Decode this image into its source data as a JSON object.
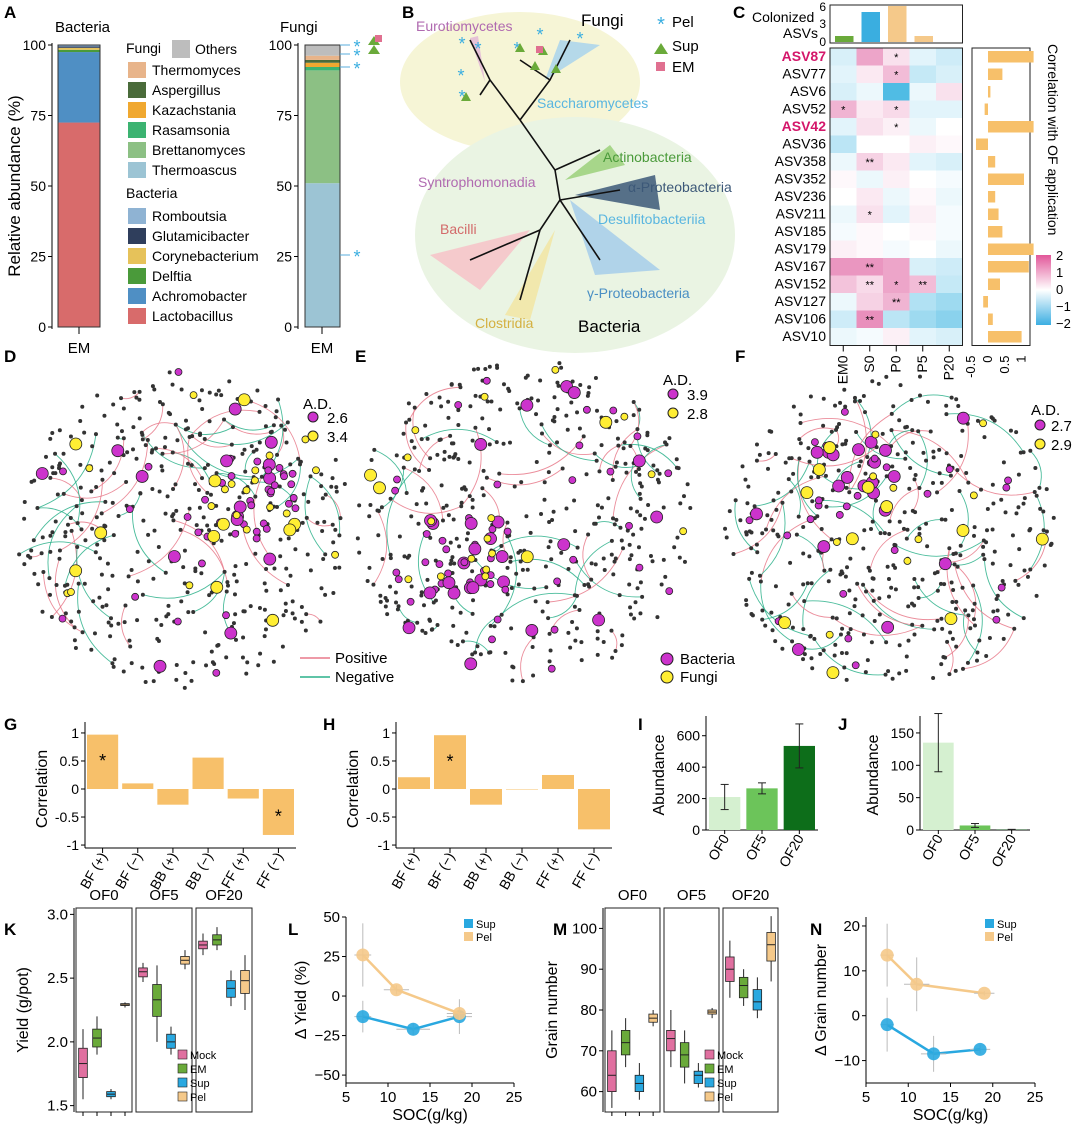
{
  "colors": {
    "Others": "#bdbdbd",
    "Thermomyces": "#e8b48a",
    "Aspergillus": "#4a6b3a",
    "Kazachstania": "#f0a830",
    "Rasamsonia": "#3cb371",
    "Brettanomyces": "#8cc084",
    "Thermoascus": "#9cc4d4",
    "Romboutsia": "#8fb3d3",
    "Glutamicibacter": "#2f3e5c",
    "Corynebacterium": "#e6c25a",
    "Delftia": "#4a9a3a",
    "Achromobacter": "#4f8fc4",
    "Lactobacillus": "#d86b6b",
    "pel": "#3aaee0",
    "sup": "#6aaa3a",
    "em": "#e07090",
    "orange": "#f7c06a",
    "mock": "#e070a0",
    "em_box": "#6aaa3a",
    "sup_box": "#29a8e0",
    "pel_box": "#f5c98a",
    "bacteria_node": "#cc33cc",
    "fungi_node": "#ffee33",
    "positive": "#e8798a",
    "negative": "#2ab08a"
  },
  "panels": {
    "A": {
      "label": "A",
      "bacteria_title": "Bacteria",
      "fungi_title": "Fungi",
      "ylabel": "Relative abundance (%)",
      "yticks": [
        "0",
        "25",
        "50",
        "75",
        "100"
      ],
      "xlabel": "EM",
      "legend": {
        "fungi_heading": "Fungi",
        "others": "Others",
        "fungi": [
          "Thermomyces",
          "Aspergillus",
          "Kazachstania",
          "Rasamsonia",
          "Brettanomyces",
          "Thermoascus"
        ],
        "bacteria_heading": "Bacteria",
        "bacteria": [
          "Romboutsia",
          "Glutamicibacter",
          "Corynebacterium",
          "Delftia",
          "Achromobacter",
          "Lactobacillus"
        ]
      },
      "star": "*"
    },
    "B": {
      "label": "B",
      "fungi": "Fungi",
      "bacteria": "Bacteria",
      "clades": [
        "Eurotiomycetes",
        "Saccharomycetes",
        "Syntrophomonadia",
        "Actinobacteria",
        "α-Proteobacteria",
        "Desulfitobacteriia",
        "Bacilli",
        "γ-Proteobacteria",
        "Clostridia"
      ],
      "legend": [
        "Pel",
        "Sup",
        "EM"
      ]
    },
    "C": {
      "label": "C",
      "top_label1": "Colonized",
      "top_label2": "ASVs",
      "top_ticks": [
        "0",
        "3",
        "6"
      ],
      "right_axis": "Correlation with OF application",
      "right_ticks": [
        "-0.5",
        "0",
        "0.5",
        "1"
      ],
      "scale_ticks": [
        "2",
        "1",
        "0",
        "−1",
        "−2"
      ]
    },
    "D": {
      "label": "D",
      "ad": "A.D.",
      "v1": "2.6",
      "v2": "3.4",
      "pos": "Positive",
      "neg": "Negative"
    },
    "E": {
      "label": "E",
      "ad": "A.D.",
      "v1": "3.9",
      "v2": "2.8",
      "bac": "Bacteria",
      "fun": "Fungi"
    },
    "F": {
      "label": "F",
      "ad": "A.D.",
      "v1": "2.7",
      "v2": "2.9"
    },
    "G": {
      "label": "G",
      "ylabel": "Correlation",
      "yticks": [
        "1",
        "0.5",
        "0",
        "-0.5",
        "-1"
      ]
    },
    "H": {
      "label": "H",
      "ylabel": "Correlation",
      "yticks": [
        "1",
        "0.5",
        "0",
        "-0.5",
        "-1"
      ]
    },
    "I": {
      "label": "I",
      "ylabel": "Abundance",
      "yticks": [
        "0",
        "200",
        "400",
        "600"
      ]
    },
    "J": {
      "label": "J",
      "ylabel": "Abundance",
      "yticks": [
        "0",
        "50",
        "100",
        "150"
      ]
    },
    "K": {
      "label": "K",
      "ylabel": "Yield (g/pot)",
      "yticks": [
        "1.5",
        "2.0",
        "2.5",
        "3.0"
      ],
      "groups": [
        "OF0",
        "OF5",
        "OF20"
      ],
      "legend": [
        "Mock",
        "EM",
        "Sup",
        "Pel"
      ]
    },
    "L": {
      "label": "L",
      "ylabel": "Δ Yield (%)",
      "xlabel": "SOC(g/kg)",
      "yticks": [
        "50",
        "25",
        "0",
        "−25",
        "−50"
      ],
      "xticks": [
        "5",
        "10",
        "15",
        "20",
        "25"
      ],
      "legend": [
        "Sup",
        "Pel"
      ]
    },
    "M": {
      "label": "M",
      "ylabel": "Grain number",
      "yticks": [
        "60",
        "70",
        "80",
        "90",
        "100"
      ],
      "groups": [
        "OF0",
        "OF5",
        "OF20"
      ],
      "legend": [
        "Mock",
        "EM",
        "Sup",
        "Pel"
      ]
    },
    "N": {
      "label": "N",
      "ylabel": "Δ Grain number",
      "xlabel": "SOC(g/kg)",
      "yticks": [
        "20",
        "10",
        "0",
        "−10"
      ],
      "xticks": [
        "5",
        "10",
        "15",
        "20",
        "25"
      ],
      "legend": [
        "Sup",
        "Pel"
      ]
    }
  },
  "chart_data": [
    {
      "id": "A-bacteria",
      "type": "bar",
      "title": "Bacteria",
      "categories": [
        "EM"
      ],
      "ylabel": "Relative abundance (%)",
      "ylim": [
        0,
        100
      ],
      "series": [
        {
          "name": "Lactobacillus",
          "values": [
            72.5
          ]
        },
        {
          "name": "Achromobacter",
          "values": [
            25
          ]
        },
        {
          "name": "Delftia",
          "values": [
            0.8
          ]
        },
        {
          "name": "Corynebacterium",
          "values": [
            0.7
          ]
        },
        {
          "name": "Glutamicibacter",
          "values": [
            0.5
          ]
        },
        {
          "name": "Romboutsia",
          "values": [
            0.5
          ]
        }
      ]
    },
    {
      "id": "A-fungi",
      "type": "bar",
      "title": "Fungi",
      "categories": [
        "EM"
      ],
      "ylim": [
        0,
        100
      ],
      "series": [
        {
          "name": "Thermoascus",
          "values": [
            51
          ]
        },
        {
          "name": "Brettanomyces",
          "values": [
            40
          ]
        },
        {
          "name": "Rasamsonia",
          "values": [
            1.2
          ]
        },
        {
          "name": "Kazachstania",
          "values": [
            1.5
          ]
        },
        {
          "name": "Aspergillus",
          "values": [
            1
          ]
        },
        {
          "name": "Thermomyces",
          "values": [
            1.5
          ]
        },
        {
          "name": "Others",
          "values": [
            3.8
          ]
        }
      ]
    },
    {
      "id": "C-top",
      "type": "bar",
      "title": "Colonized ASVs",
      "categories": [
        "EM0",
        "S0",
        "P0",
        "P5",
        "P20"
      ],
      "values": [
        1,
        5,
        6,
        1,
        0
      ],
      "ylim": [
        0,
        6
      ]
    },
    {
      "id": "C-heatmap",
      "type": "heatmap",
      "columns": [
        "EM0",
        "S0",
        "P0",
        "P5",
        "P20"
      ],
      "rows": [
        "ASV87",
        "ASV77",
        "ASV6",
        "ASV52",
        "ASV42",
        "ASV36",
        "ASV358",
        "ASV352",
        "ASV236",
        "ASV211",
        "ASV185",
        "ASV179",
        "ASV167",
        "ASV152",
        "ASV127",
        "ASV106",
        "ASV10"
      ],
      "highlight_rows": [
        "ASV87",
        "ASV42"
      ],
      "values": [
        [
          -0.4,
          1.2,
          0.4,
          -0.3,
          -0.5
        ],
        [
          -0.3,
          0.3,
          0.9,
          -0.6,
          -0.4
        ],
        [
          -0.4,
          -0.2,
          -1.8,
          -0.2,
          0.4
        ],
        [
          1.0,
          0.3,
          0.5,
          -0.3,
          -0.3
        ],
        [
          -0.3,
          0.4,
          0.2,
          -0.2,
          0.0
        ],
        [
          -0.7,
          0.0,
          0.0,
          0.2,
          0.1
        ],
        [
          -0.2,
          0.6,
          0.3,
          -0.3,
          -0.4
        ],
        [
          0.1,
          -0.2,
          0.2,
          0.0,
          -0.1
        ],
        [
          0.0,
          0.3,
          -0.2,
          0.1,
          -0.2
        ],
        [
          -0.2,
          0.4,
          -0.3,
          0.2,
          -0.1
        ],
        [
          -0.1,
          0.1,
          0.0,
          0.1,
          -0.1
        ],
        [
          0.2,
          0.1,
          -0.1,
          0.0,
          -0.2
        ],
        [
          1.4,
          1.4,
          1.2,
          -0.4,
          -0.5
        ],
        [
          0.8,
          0.5,
          1.2,
          0.9,
          -0.6
        ],
        [
          -0.2,
          0.6,
          1.0,
          -0.8,
          -1.0
        ],
        [
          -0.5,
          1.5,
          -0.7,
          -1.0,
          -1.2
        ],
        [
          -0.2,
          -0.1,
          0.2,
          -0.3,
          -0.4
        ]
      ],
      "significance": [
        [
          "",
          "",
          "*",
          "",
          ""
        ],
        [
          "",
          "",
          "*",
          "",
          ""
        ],
        [
          "",
          "",
          "",
          "",
          ""
        ],
        [
          "*",
          "",
          "*",
          "",
          ""
        ],
        [
          "",
          "",
          "*",
          "",
          ""
        ],
        [
          "",
          "",
          "",
          "",
          ""
        ],
        [
          "",
          "**",
          "",
          "",
          ""
        ],
        [
          "",
          "",
          "",
          "",
          ""
        ],
        [
          "",
          "",
          "",
          "",
          ""
        ],
        [
          "",
          "*",
          "",
          "",
          ""
        ],
        [
          "",
          "",
          "",
          "",
          ""
        ],
        [
          "",
          "",
          "",
          "",
          ""
        ],
        [
          "",
          "**",
          "",
          "",
          ""
        ],
        [
          "",
          "**",
          "*",
          "**",
          ""
        ],
        [
          "",
          "",
          "**",
          "",
          ""
        ],
        [
          "",
          "**",
          "",
          "",
          ""
        ],
        [
          "",
          "",
          "",
          "",
          ""
        ]
      ],
      "scale": [
        -2,
        2
      ]
    },
    {
      "id": "C-right",
      "type": "bar",
      "title": "Correlation with OF application",
      "categories": [
        "ASV87",
        "ASV77",
        "ASV6",
        "ASV52",
        "ASV42",
        "ASV36",
        "ASV358",
        "ASV352",
        "ASV236",
        "ASV211",
        "ASV185",
        "ASV179",
        "ASV167",
        "ASV152",
        "ASV127",
        "ASV106",
        "ASV10"
      ],
      "values": [
        0.95,
        0.3,
        0.05,
        -0.07,
        0.95,
        -0.25,
        0.15,
        0.75,
        0.15,
        0.22,
        0.3,
        0.95,
        0.85,
        0.25,
        -0.1,
        0.1,
        0.7
      ],
      "xlim": [
        -0.5,
        1
      ]
    },
    {
      "id": "G",
      "type": "bar",
      "ylabel": "Correlation",
      "categories": [
        "BF (+)",
        "BF (−)",
        "BB (+)",
        "BB (−)",
        "FF (+)",
        "FF (−)"
      ],
      "values": [
        0.97,
        0.1,
        -0.28,
        0.56,
        -0.17,
        -0.82
      ],
      "labels": [
        "*",
        "",
        "",
        "",
        "",
        "*"
      ],
      "ylim": [
        -1,
        1
      ]
    },
    {
      "id": "H",
      "type": "bar",
      "ylabel": "Correlation",
      "categories": [
        "BF (+)",
        "BF (−)",
        "BB (+)",
        "BB (−)",
        "FF (+)",
        "FF (−)"
      ],
      "values": [
        0.21,
        0.96,
        -0.28,
        0.0,
        0.25,
        -0.72
      ],
      "labels": [
        "",
        "*",
        "",
        "",
        "",
        ""
      ],
      "ylim": [
        -1,
        1
      ]
    },
    {
      "id": "I",
      "type": "bar",
      "ylabel": "Abundance",
      "categories": [
        "OF0",
        "OF5",
        "OF20"
      ],
      "values": [
        210,
        265,
        535
      ],
      "errors": [
        80,
        35,
        140
      ],
      "ylim": [
        0,
        700
      ]
    },
    {
      "id": "J",
      "type": "bar",
      "ylabel": "Abundance",
      "categories": [
        "OF0",
        "OF5",
        "OF20"
      ],
      "values": [
        135,
        7,
        0.5
      ],
      "errors": [
        45,
        3,
        0.5
      ],
      "ylim": [
        0,
        170
      ]
    },
    {
      "id": "K",
      "type": "box",
      "ylabel": "Yield (g/pot)",
      "groups": [
        "OF0",
        "OF5",
        "OF20"
      ],
      "series": [
        "Mock",
        "EM",
        "Sup",
        "Pel"
      ],
      "ylim": [
        1.45,
        3.05
      ],
      "boxes": [
        [
          [
            1.55,
            1.72,
            1.83,
            1.95,
            2.1
          ],
          [
            1.9,
            1.96,
            2.03,
            2.1,
            2.2
          ],
          [
            1.55,
            1.57,
            1.59,
            1.61,
            1.63
          ],
          [
            2.27,
            2.285,
            2.29,
            2.3,
            2.31
          ]
        ],
        [
          [
            2.47,
            2.51,
            2.55,
            2.58,
            2.62
          ],
          [
            2.0,
            2.2,
            2.33,
            2.45,
            2.6
          ],
          [
            1.9,
            1.95,
            2.0,
            2.06,
            2.12
          ],
          [
            2.57,
            2.61,
            2.64,
            2.67,
            2.72
          ]
        ],
        [
          [
            2.68,
            2.73,
            2.76,
            2.79,
            2.85
          ],
          [
            2.72,
            2.76,
            2.8,
            2.84,
            2.9
          ],
          [
            2.28,
            2.35,
            2.42,
            2.48,
            2.56
          ],
          [
            2.25,
            2.38,
            2.48,
            2.56,
            2.68
          ]
        ]
      ]
    },
    {
      "id": "L",
      "type": "scatter",
      "ylabel": "Δ Yield (%)",
      "xlabel": "SOC(g/kg)",
      "xlim": [
        5,
        25
      ],
      "ylim": [
        -55,
        50
      ],
      "series": [
        {
          "name": "Sup",
          "x": [
            7,
            13,
            18.5
          ],
          "y": [
            -13,
            -21,
            -13
          ],
          "yerr": [
            10,
            4,
            11
          ],
          "xerr": [
            1,
            2,
            1.5
          ]
        },
        {
          "name": "Pel",
          "x": [
            7,
            11,
            18.5
          ],
          "y": [
            26,
            4,
            -11
          ],
          "yerr": [
            20,
            3,
            4
          ],
          "xerr": [
            1,
            1.5,
            1.5
          ]
        }
      ]
    },
    {
      "id": "M",
      "type": "box",
      "ylabel": "Grain number",
      "groups": [
        "OF0",
        "OF5",
        "OF20"
      ],
      "series": [
        "Mock",
        "EM",
        "Sup",
        "Pel"
      ],
      "ylim": [
        55,
        105
      ],
      "boxes": [
        [
          [
            56,
            60,
            64,
            70,
            75
          ],
          [
            66,
            69,
            72,
            75,
            78
          ],
          [
            58,
            60,
            62,
            64,
            67
          ],
          [
            76,
            77,
            78,
            79,
            80
          ]
        ],
        [
          [
            66,
            70,
            73,
            75,
            80
          ],
          [
            62,
            66,
            69,
            72,
            75
          ],
          [
            61,
            62,
            64,
            65,
            67
          ],
          [
            78,
            79,
            79.5,
            80,
            80.5
          ]
        ],
        [
          [
            83,
            87,
            90,
            93,
            97
          ],
          [
            81,
            83,
            86,
            88,
            90
          ],
          [
            78,
            80,
            82,
            85,
            88
          ],
          [
            87,
            92,
            96,
            99,
            103
          ]
        ]
      ]
    },
    {
      "id": "N",
      "type": "scatter",
      "ylabel": "Δ Grain number",
      "xlabel": "SOC(g/kg)",
      "xlim": [
        5,
        25
      ],
      "ylim": [
        -15,
        22
      ],
      "series": [
        {
          "name": "Sup",
          "x": [
            7.5,
            13,
            18.5
          ],
          "y": [
            -2,
            -8.5,
            -7.5
          ],
          "yerr": [
            6,
            4,
            1
          ],
          "xerr": [
            0.8,
            1.5,
            1.2
          ]
        },
        {
          "name": "Pel",
          "x": [
            7.5,
            11,
            19
          ],
          "y": [
            13.5,
            7,
            5
          ],
          "yerr": [
            7,
            6,
            0.5
          ],
          "xerr": [
            0.8,
            1.5,
            1.2
          ]
        }
      ]
    }
  ]
}
